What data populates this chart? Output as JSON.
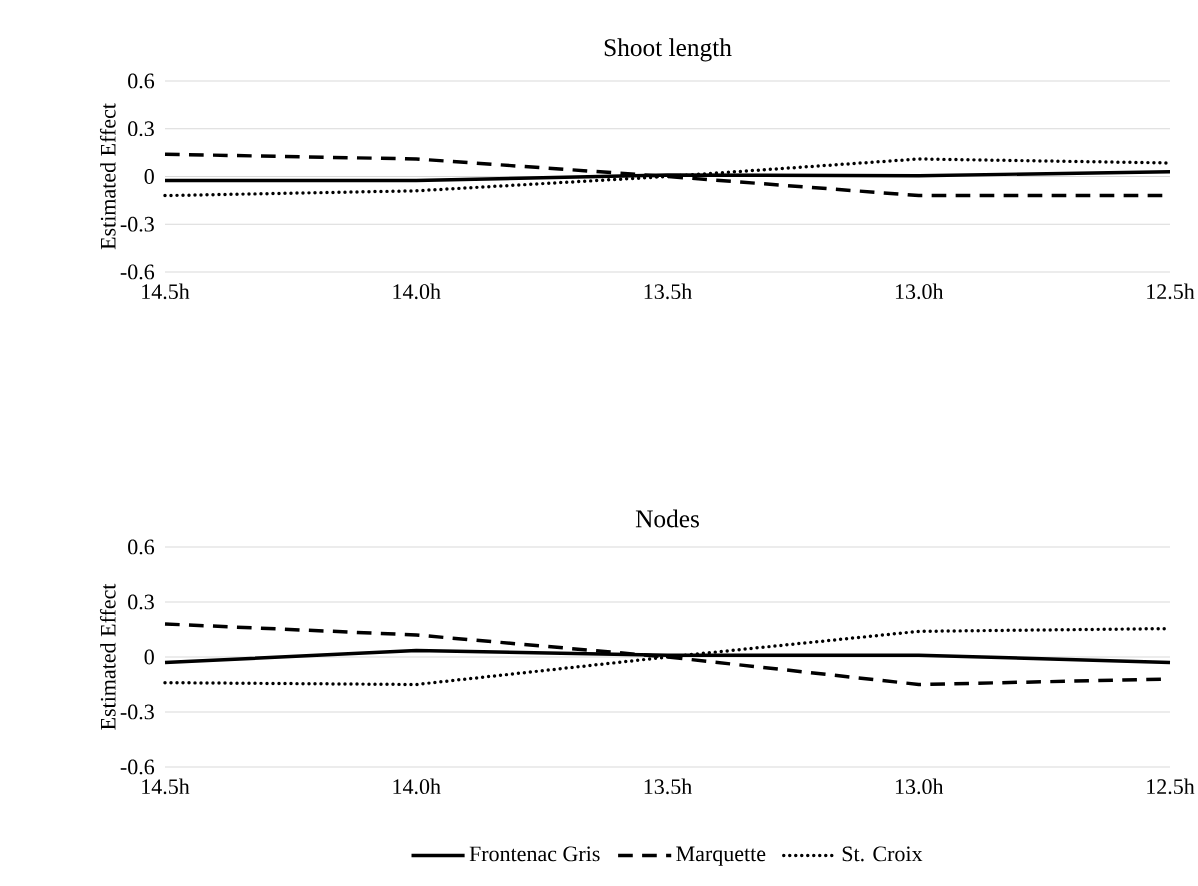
{
  "chart_data": [
    {
      "type": "line",
      "title": "Shoot length",
      "ylabel": "Estimated Effect",
      "categories": [
        "14.5h",
        "14.0h",
        "13.5h",
        "13.0h",
        "12.5h"
      ],
      "ylim": [
        -0.6,
        0.6
      ],
      "yticks": [
        -0.6,
        -0.3,
        0,
        0.3,
        0.6
      ],
      "grid": "y",
      "marker": "none",
      "series": [
        {
          "color": "#000000",
          "line_style": "solid",
          "values": [
            -0.025,
            -0.025,
            0.01,
            0.005,
            0.03
          ]
        },
        {
          "color": "#000000",
          "line_style": "dashed",
          "values": [
            0.14,
            0.11,
            0.0,
            -0.12,
            -0.12
          ]
        },
        {
          "color": "#000000",
          "line_style": "dotted",
          "values": [
            -0.12,
            -0.09,
            0.0,
            0.11,
            0.085
          ]
        }
      ]
    },
    {
      "type": "line",
      "title": "Nodes",
      "ylabel": "Estimated Effect",
      "categories": [
        "14.5h",
        "14.0h",
        "13.5h",
        "13.0h",
        "12.5h"
      ],
      "ylim": [
        -0.6,
        0.6
      ],
      "yticks": [
        -0.6,
        -0.3,
        0,
        0.3,
        0.6
      ],
      "grid": "y",
      "marker": "none",
      "legend": "bottom",
      "series": [
        {
          "name": "Frontenac Gris",
          "color": "#000000",
          "line_style": "solid",
          "values": [
            -0.03,
            0.035,
            0.01,
            0.01,
            -0.03
          ]
        },
        {
          "name": "Marquette",
          "color": "#000000",
          "line_style": "dashed",
          "values": [
            0.18,
            0.12,
            0.0,
            -0.15,
            -0.12
          ]
        },
        {
          "name": "St. Croix",
          "color": "#000000",
          "line_style": "dotted",
          "values": [
            -0.14,
            -0.15,
            0.0,
            0.14,
            0.155
          ]
        }
      ]
    }
  ]
}
